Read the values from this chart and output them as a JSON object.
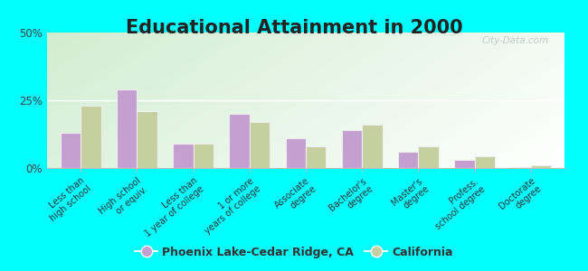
{
  "title": "Educational Attainment in 2000",
  "categories": [
    "Less than\nhigh school",
    "High school\nor equiv.",
    "Less than\n1 year of college",
    "1 or more\nyears of college",
    "Associate\ndegree",
    "Bachelor's\ndegree",
    "Master's\ndegree",
    "Profess.\nschool degree",
    "Doctorate\ndegree"
  ],
  "phoenix_values": [
    13.0,
    29.0,
    9.0,
    20.0,
    11.0,
    14.0,
    6.0,
    3.0,
    0.5
  ],
  "california_values": [
    23.0,
    21.0,
    9.0,
    17.0,
    8.0,
    16.0,
    8.0,
    4.5,
    1.0
  ],
  "phoenix_color": "#c3a0d0",
  "california_color": "#c5cfa0",
  "bar_edge_color": "#eeeeee",
  "background_top_left": "#d0e8c8",
  "background_bottom_right": "#f5f8ec",
  "outer_background": "#00ffff",
  "ylim": [
    0,
    50
  ],
  "yticks": [
    0,
    25,
    50
  ],
  "ytick_labels": [
    "0%",
    "25%",
    "50%"
  ],
  "legend_phoenix": "Phoenix Lake-Cedar Ridge, CA",
  "legend_california": "California",
  "title_fontsize": 15,
  "tick_fontsize": 7,
  "legend_fontsize": 9,
  "bar_width": 0.36,
  "grid_color": "#ffffff",
  "watermark": "City-Data.com"
}
